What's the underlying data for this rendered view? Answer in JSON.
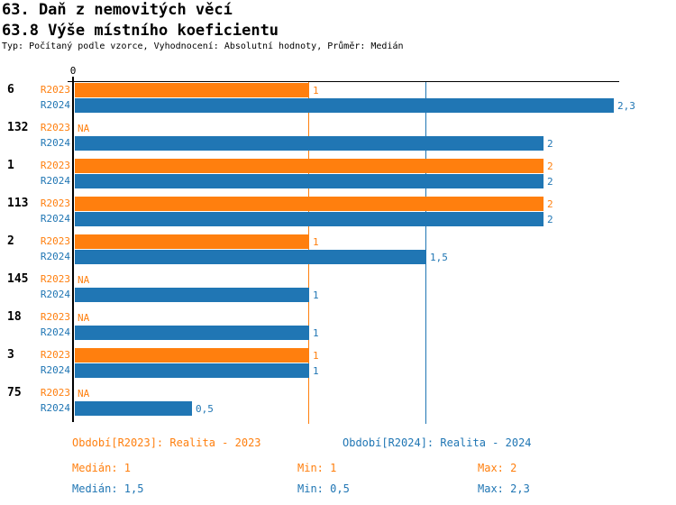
{
  "header": {
    "title": "63. Daň z nemovitých věcí",
    "subtitle": "63.8 Výše místního koeficientu",
    "info": "Typ: Počítaný podle vzorce, Vyhodnocení: Absolutní hodnoty, Průměr: Medián"
  },
  "chart_data": {
    "type": "bar",
    "orientation": "horizontal",
    "title": "63.8 Výše místního koeficientu",
    "xlim": [
      0,
      2.35
    ],
    "axis": {
      "zero_label": "0"
    },
    "grid": "median-lines-only",
    "na_label": "NA",
    "series_labels": [
      "R2023",
      "R2024"
    ],
    "colors": {
      "r2023": "#ff7f0e",
      "r2024": "#2076b4"
    },
    "groups": [
      {
        "label": "6",
        "r2023": 1,
        "r2023_label": "1",
        "r2024": 2.3,
        "r2024_label": "2,3"
      },
      {
        "label": "132",
        "r2023": null,
        "r2023_label": "NA",
        "r2024": 2,
        "r2024_label": "2"
      },
      {
        "label": "1",
        "r2023": 2,
        "r2023_label": "2",
        "r2024": 2,
        "r2024_label": "2"
      },
      {
        "label": "113",
        "r2023": 2,
        "r2023_label": "2",
        "r2024": 2,
        "r2024_label": "2"
      },
      {
        "label": "2",
        "r2023": 1,
        "r2023_label": "1",
        "r2024": 1.5,
        "r2024_label": "1,5"
      },
      {
        "label": "145",
        "r2023": null,
        "r2023_label": "NA",
        "r2024": 1,
        "r2024_label": "1"
      },
      {
        "label": "18",
        "r2023": null,
        "r2023_label": "NA",
        "r2024": 1,
        "r2024_label": "1"
      },
      {
        "label": "3",
        "r2023": 1,
        "r2023_label": "1",
        "r2024": 1,
        "r2024_label": "1"
      },
      {
        "label": "75",
        "r2023": null,
        "r2023_label": "NA",
        "r2024": 0.5,
        "r2024_label": "0,5"
      }
    ],
    "median_lines": [
      {
        "series": "R2023",
        "value": 1,
        "color": "#ff7f0e"
      },
      {
        "series": "R2024",
        "value": 1.5,
        "color": "#2076b4"
      }
    ]
  },
  "legend": {
    "r2023": "Období[R2023]: Realita - 2023",
    "r2024": "Období[R2024]: Realita - 2024"
  },
  "stats": {
    "r2023": {
      "median": "Medián: 1",
      "min": "Min: 1",
      "max": "Max: 2"
    },
    "r2024": {
      "median": "Medián: 1,5",
      "min": "Min: 0,5",
      "max": "Max: 2,3"
    }
  }
}
